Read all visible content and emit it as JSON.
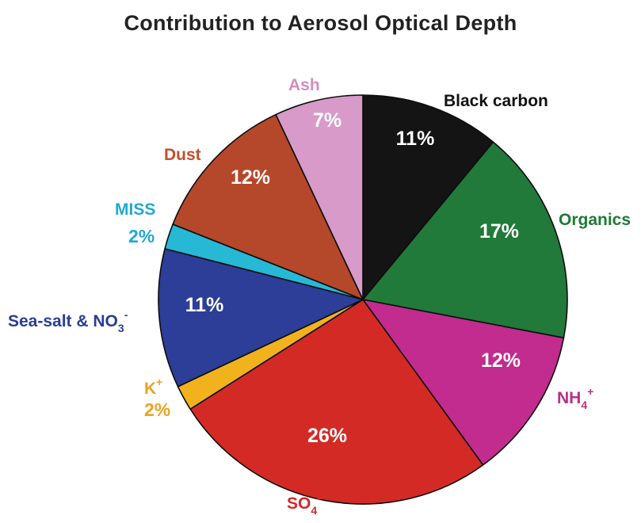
{
  "chart_data": {
    "type": "pie",
    "title": "Contribution to Aerosol Optical Depth",
    "start_angle_deg": 0,
    "direction": "clockwise",
    "slices": [
      {
        "key": "black_carbon",
        "label": "Black carbon",
        "value": 11,
        "value_label": "11%",
        "color": "#141414",
        "label_color": "#111111"
      },
      {
        "key": "organics",
        "label": "Organics",
        "value": 17,
        "value_label": "17%",
        "color": "#217a3a",
        "label_color": "#1f7a33"
      },
      {
        "key": "nh4",
        "label": "NH",
        "label_sub": "4",
        "label_sup": "+",
        "value": 12,
        "value_label": "12%",
        "color": "#c12c8e",
        "label_color": "#b8308a"
      },
      {
        "key": "so4",
        "label": "SO",
        "label_sub": "4",
        "label_sup": "=",
        "value": 26,
        "value_label": "26%",
        "color": "#d42a26",
        "label_color": "#d4282b"
      },
      {
        "key": "k",
        "label": "K",
        "label_sup": "+",
        "value": 2,
        "value_label": "2%",
        "color": "#f2b21e",
        "label_color": "#e9a320"
      },
      {
        "key": "seasalt",
        "label": "Sea-salt & NO",
        "label_sub": "3",
        "label_sup": "-",
        "value": 11,
        "value_label": "11%",
        "color": "#2c3e98",
        "label_color": "#2a3d96"
      },
      {
        "key": "miss",
        "label": "MISS",
        "value": 2,
        "value_label": "2%",
        "color": "#27b8d6",
        "label_color": "#20a9cf"
      },
      {
        "key": "dust",
        "label": "Dust",
        "value": 12,
        "value_label": "12%",
        "color": "#b5472a",
        "label_color": "#c2502c"
      },
      {
        "key": "ash",
        "label": "Ash",
        "value": 7,
        "value_label": "7%",
        "color": "#d89ac9",
        "label_color": "#d38dc2"
      }
    ]
  }
}
